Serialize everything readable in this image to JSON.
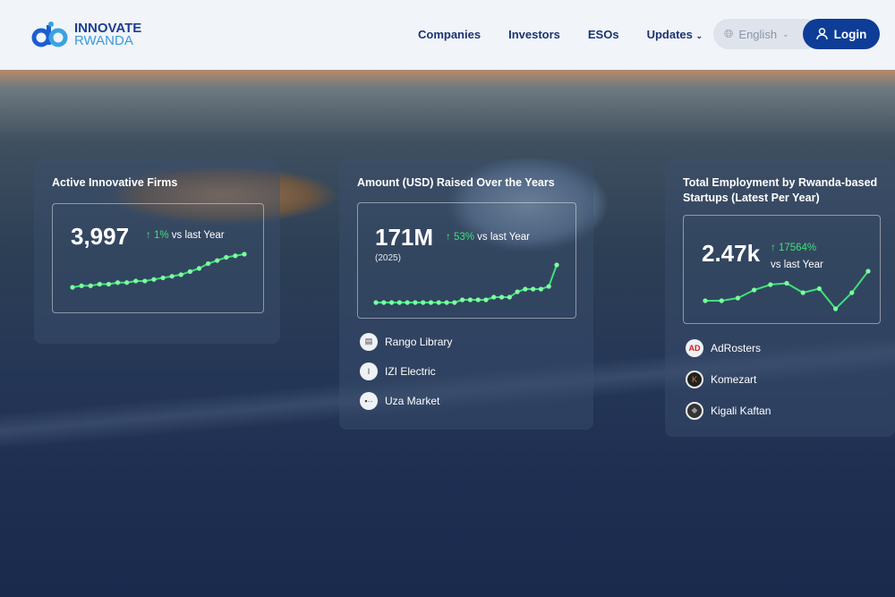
{
  "header": {
    "logo_top": "INNOVATE",
    "logo_bottom": "RWANDA",
    "nav": [
      "Companies",
      "Investors",
      "ESOs",
      "Updates"
    ],
    "language": "English",
    "login": "Login"
  },
  "cards": [
    {
      "title": "Active Innovative Firms",
      "value": "3,997",
      "change": "1%",
      "change_suffix": " vs last Year",
      "sparkline": [
        10,
        11,
        11,
        12,
        12,
        13,
        13,
        14,
        14,
        15,
        16,
        17,
        18,
        20,
        22,
        25,
        27,
        29,
        30,
        31
      ]
    },
    {
      "title": "Amount (USD) Raised Over the Years",
      "value": "171M",
      "change": "53%",
      "change_suffix": " vs last Year",
      "note": "(2025)",
      "sparkline": [
        1,
        1,
        1,
        1,
        1,
        1,
        1,
        1,
        1,
        1,
        1,
        2,
        2,
        2,
        2,
        3,
        3,
        3,
        5,
        6,
        6,
        6,
        7,
        15
      ],
      "items": [
        {
          "name": "Rango Library",
          "icon": "library-logo"
        },
        {
          "name": "IZI Electric",
          "icon": "izi-logo"
        },
        {
          "name": "Uza Market",
          "icon": "uza-logo"
        }
      ]
    },
    {
      "title": "Total Employment by Rwanda-based Startups (Latest Per Year)",
      "value": "2.47k",
      "change": "17564%",
      "change_suffix": "vs last Year",
      "sparkline": [
        2,
        2,
        3,
        6,
        8,
        8.5,
        5,
        6.5,
        -1,
        5,
        13
      ],
      "items": [
        {
          "name": "AdRosters",
          "icon": "adrosters-logo"
        },
        {
          "name": "Komezart",
          "icon": "komezart-logo"
        },
        {
          "name": "Kigali Kaftan",
          "icon": "kigali-kaftan-logo"
        }
      ]
    }
  ],
  "colors": {
    "accent": "#0e3d97",
    "positive": "#3fe07a",
    "nav_text": "#1c3470"
  }
}
